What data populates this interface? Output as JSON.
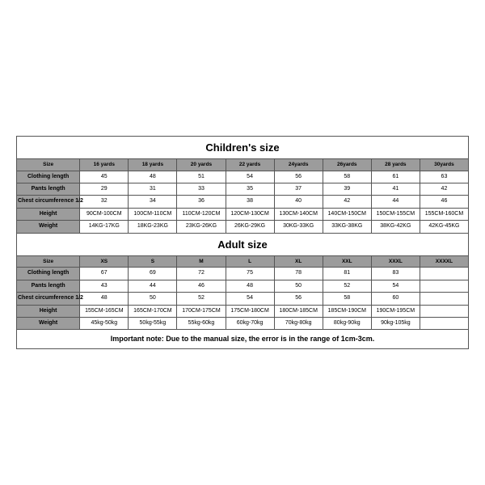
{
  "children": {
    "title": "Children's size",
    "row_labels": [
      "Size",
      "Clothing length",
      "Pants length",
      "Chest circumference 1/2",
      "Height",
      "Weight"
    ],
    "columns": [
      "16 yards",
      "18 yards",
      "20 yards",
      "22 yards",
      "24yards",
      "26yards",
      "28 yards",
      "30yards"
    ],
    "rows": [
      [
        "45",
        "48",
        "51",
        "54",
        "56",
        "58",
        "61",
        "63"
      ],
      [
        "29",
        "31",
        "33",
        "35",
        "37",
        "39",
        "41",
        "42"
      ],
      [
        "32",
        "34",
        "36",
        "38",
        "40",
        "42",
        "44",
        "46"
      ],
      [
        "90CM-100CM",
        "100CM-110CM",
        "110CM-120CM",
        "120CM-130CM",
        "130CM-140CM",
        "140CM-150CM",
        "150CM-155CM",
        "155CM-160CM"
      ],
      [
        "14KG-17KG",
        "18KG-23KG",
        "23KG-26KG",
        "26KG-29KG",
        "30KG-33KG",
        "33KG-38KG",
        "38KG-42KG",
        "42KG-45KG"
      ]
    ]
  },
  "adult": {
    "title": "Adult size",
    "row_labels": [
      "Size",
      "Clothing length",
      "Pants length",
      "Chest circumference 1/2",
      "Height",
      "Weight"
    ],
    "columns": [
      "XS",
      "S",
      "M",
      "L",
      "XL",
      "XXL",
      "XXXL",
      "XXXXL"
    ],
    "rows": [
      [
        "67",
        "69",
        "72",
        "75",
        "78",
        "81",
        "83",
        ""
      ],
      [
        "43",
        "44",
        "46",
        "48",
        "50",
        "52",
        "54",
        ""
      ],
      [
        "48",
        "50",
        "52",
        "54",
        "56",
        "58",
        "60",
        ""
      ],
      [
        "155CM-165CM",
        "165CM-170CM",
        "170CM-175CM",
        "175CM-180CM",
        "180CM-185CM",
        "185CM-190CM",
        "190CM-195CM",
        ""
      ],
      [
        "45kg-50kg",
        "50kg-55kg",
        "55kg-60kg",
        "60kg-70kg",
        "70kg-80kg",
        "80kg-90kg",
        "90kg-105kg",
        ""
      ]
    ],
    "note": "Important note: Due to the manual size, the error is in the range of 1cm-3cm."
  }
}
